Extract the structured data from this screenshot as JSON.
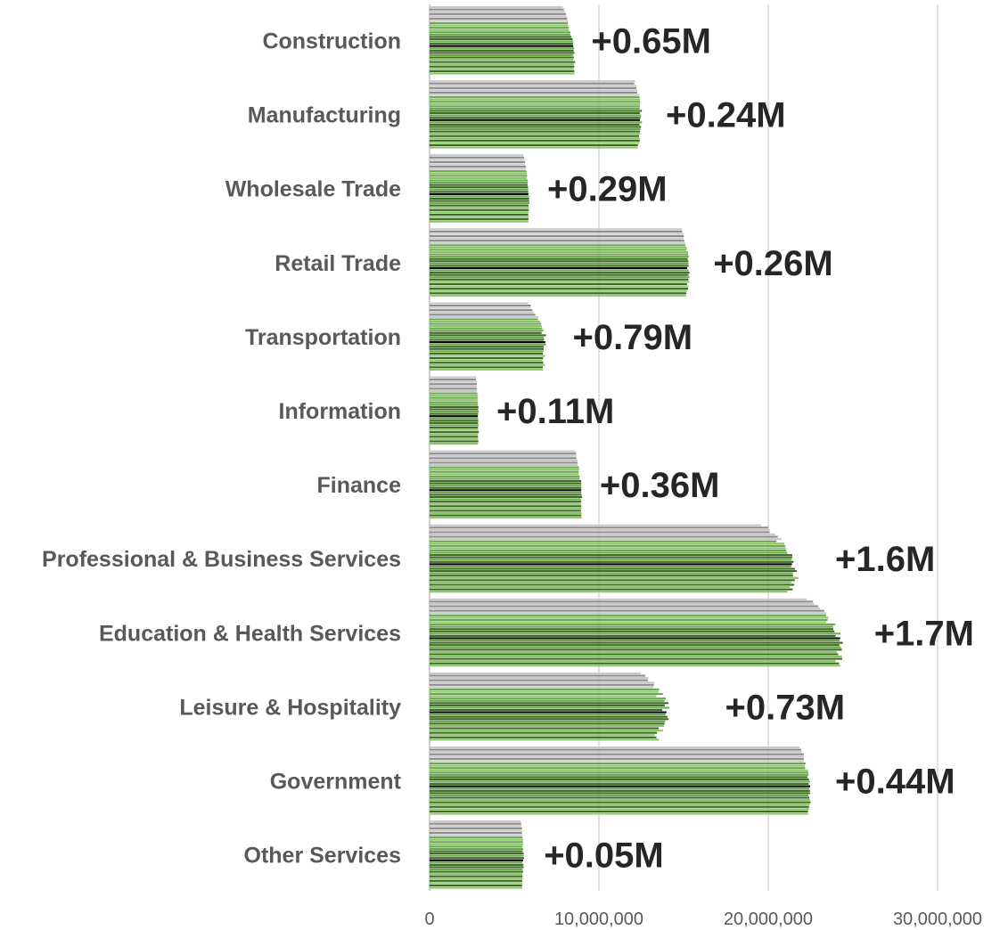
{
  "chart_data": {
    "type": "bar",
    "orientation": "horizontal",
    "categories": [
      "Construction",
      "Manufacturing",
      "Wholesale Trade",
      "Retail Trade",
      "Transportation",
      "Information",
      "Finance",
      "Professional & Business Services",
      "Education & Health Services",
      "Leisure & Hospitality",
      "Government",
      "Other Services"
    ],
    "start_values": [
      7900000,
      12100000,
      5550000,
      14900000,
      5900000,
      2750000,
      8600000,
      19700000,
      22400000,
      12600000,
      21900000,
      5400000
    ],
    "end_values": [
      8550000,
      12340000,
      5840000,
      15160000,
      6690000,
      2860000,
      8960000,
      21300000,
      24100000,
      13330000,
      22340000,
      5450000
    ],
    "peak_values": [
      8600000,
      13000000,
      6000000,
      15800000,
      7500000,
      3000000,
      9100000,
      23000000,
      25300000,
      16500000,
      23000000,
      5800000
    ],
    "change_labels": [
      "+0.65M",
      "+0.24M",
      "+0.29M",
      "+0.26M",
      "+0.79M",
      "+0.11M",
      "+0.36M",
      "+1.6M",
      "+1.7M",
      "+0.73M",
      "+0.44M",
      "+0.05M"
    ],
    "x_ticks": [
      "0",
      "10,000,000",
      "20,000,000",
      "30,000,000"
    ],
    "x_tick_values": [
      0,
      10000000,
      20000000,
      30000000
    ],
    "xlim": [
      0,
      30000000
    ],
    "grid": true,
    "bars_per_category": 30,
    "colors": {
      "gray_light": "#c9c9c9",
      "gray_dark": "#8c8c8c",
      "green_light": "#8cc46b",
      "green_mid": "#6aa84f",
      "green_dark": "#3d6b22",
      "highlight": "#000000",
      "gridline": "#d9d9d9",
      "axis": "#bfbfbf"
    }
  }
}
